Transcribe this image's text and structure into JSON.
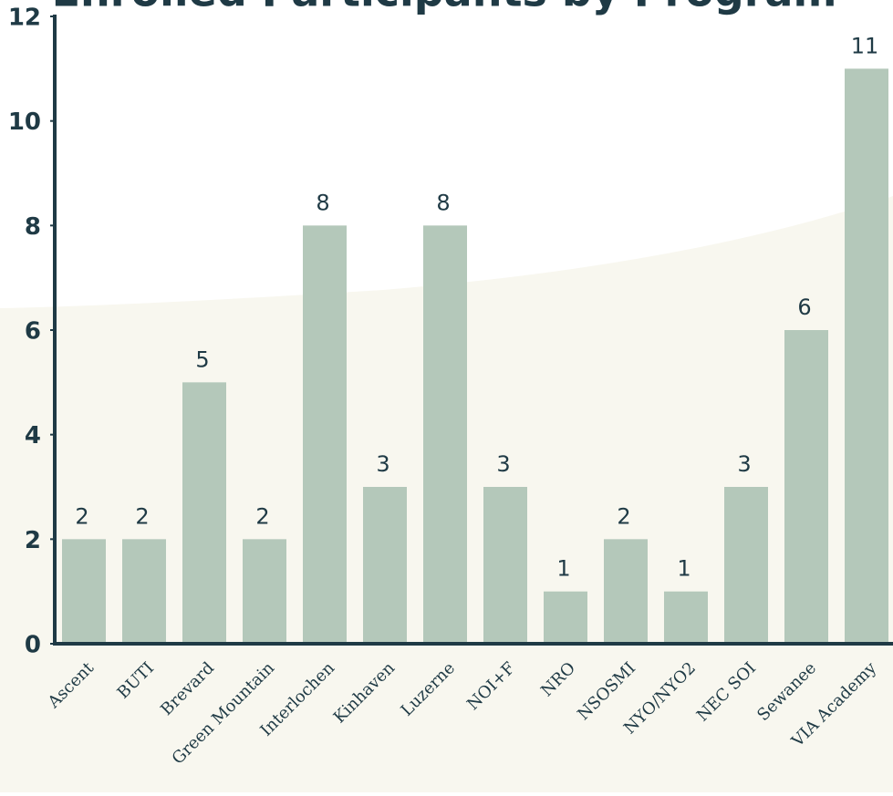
{
  "chart_data": {
    "type": "bar",
    "title": "Enrolled Participants by Program",
    "categories": [
      "Ascent",
      "BUTI",
      "Brevard",
      "Green Mountain",
      "Interlochen",
      "Kinhaven",
      "Luzerne",
      "NOI+F",
      "NRO",
      "NSOSMI",
      "NYO/NYO2",
      "NEC SOI",
      "Sewanee",
      "VIA Academy"
    ],
    "values": [
      2,
      2,
      5,
      2,
      8,
      3,
      8,
      3,
      1,
      2,
      1,
      3,
      6,
      11
    ],
    "color": "#b4c8ba",
    "ylim": [
      0,
      12
    ],
    "yticks": [
      0,
      2,
      4,
      6,
      8,
      10,
      12
    ],
    "grid": false
  }
}
